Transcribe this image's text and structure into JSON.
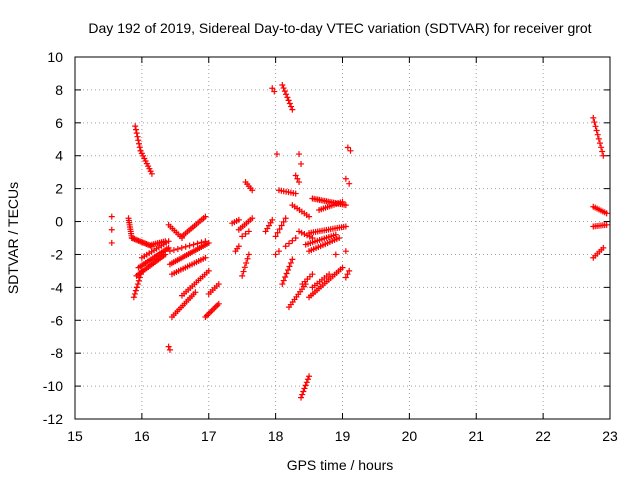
{
  "chart_data": {
    "type": "scatter",
    "title": "Day 192 of 2019, Sidereal Day-to-day VTEC variation (SDTVAR) for receiver grot",
    "xlabel": "GPS time / hours",
    "ylabel": "SDTVAR / TECUs",
    "xlim": [
      15,
      23
    ],
    "ylim": [
      -12,
      10
    ],
    "x_ticks": [
      "15",
      "16",
      "17",
      "18",
      "19",
      "20",
      "21",
      "22",
      "23"
    ],
    "y_ticks": [
      "10",
      "8",
      "6",
      "4",
      "2",
      "0",
      "-2",
      "-4",
      "-6",
      "-8",
      "-10",
      "-12"
    ],
    "grid": true,
    "marker": "+",
    "point_color": "#ff0000",
    "segments": [
      {
        "x0": 15.55,
        "y0": 0.3,
        "x1": 15.55,
        "y1": -1.3,
        "n": 3
      },
      {
        "x0": 15.8,
        "y0": 0.2,
        "x1": 15.85,
        "y1": -1.0,
        "n": 10
      },
      {
        "x0": 15.85,
        "y0": -1.0,
        "x1": 16.15,
        "y1": -1.5,
        "n": 16
      },
      {
        "x0": 16.15,
        "y0": -1.4,
        "x1": 16.35,
        "y1": -1.2,
        "n": 8
      },
      {
        "x0": 15.9,
        "y0": 5.8,
        "x1": 15.98,
        "y1": 4.3,
        "n": 8
      },
      {
        "x0": 15.98,
        "y0": 4.3,
        "x1": 16.15,
        "y1": 2.9,
        "n": 10
      },
      {
        "x0": 15.88,
        "y0": -4.6,
        "x1": 16.0,
        "y1": -3.0,
        "n": 9
      },
      {
        "x0": 15.92,
        "y0": -3.3,
        "x1": 16.35,
        "y1": -2.0,
        "n": 18
      },
      {
        "x0": 15.95,
        "y0": -2.8,
        "x1": 16.4,
        "y1": -1.6,
        "n": 18
      },
      {
        "x0": 16.0,
        "y0": -2.2,
        "x1": 16.4,
        "y1": -1.2,
        "n": 12
      },
      {
        "x0": 16.4,
        "y0": -0.2,
        "x1": 16.6,
        "y1": -1.0,
        "n": 8
      },
      {
        "x0": 16.6,
        "y0": -0.9,
        "x1": 16.95,
        "y1": 0.3,
        "n": 14
      },
      {
        "x0": 16.42,
        "y0": -1.8,
        "x1": 16.95,
        "y1": -1.2,
        "n": 10
      },
      {
        "x0": 16.42,
        "y0": -2.6,
        "x1": 17.0,
        "y1": -1.3,
        "n": 22
      },
      {
        "x0": 16.45,
        "y0": -3.2,
        "x1": 16.95,
        "y1": -2.2,
        "n": 16
      },
      {
        "x0": 16.45,
        "y0": -5.8,
        "x1": 16.8,
        "y1": -4.3,
        "n": 14
      },
      {
        "x0": 16.6,
        "y0": -4.5,
        "x1": 17.0,
        "y1": -3.0,
        "n": 14
      },
      {
        "x0": 16.95,
        "y0": -5.8,
        "x1": 17.15,
        "y1": -5.0,
        "n": 10
      },
      {
        "x0": 17.0,
        "y0": -4.4,
        "x1": 17.15,
        "y1": -3.8,
        "n": 6
      },
      {
        "x0": 16.4,
        "y0": -7.6,
        "x1": 16.42,
        "y1": -7.8,
        "n": 2
      },
      {
        "x0": 17.35,
        "y0": -0.1,
        "x1": 17.45,
        "y1": 0.1,
        "n": 4
      },
      {
        "x0": 17.4,
        "y0": -1.8,
        "x1": 17.45,
        "y1": -1.5,
        "n": 3
      },
      {
        "x0": 17.45,
        "y0": -0.5,
        "x1": 17.65,
        "y1": 0.2,
        "n": 8
      },
      {
        "x0": 17.55,
        "y0": 2.4,
        "x1": 17.65,
        "y1": 1.9,
        "n": 5
      },
      {
        "x0": 17.5,
        "y0": -3.3,
        "x1": 17.6,
        "y1": -2.0,
        "n": 6
      },
      {
        "x0": 17.5,
        "y0": -0.9,
        "x1": 17.6,
        "y1": -0.6,
        "n": 3
      },
      {
        "x0": 17.85,
        "y0": -0.6,
        "x1": 17.95,
        "y1": 0.1,
        "n": 5
      },
      {
        "x0": 17.95,
        "y0": 8.1,
        "x1": 17.98,
        "y1": 7.9,
        "n": 2
      },
      {
        "x0": 18.1,
        "y0": 8.3,
        "x1": 18.25,
        "y1": 6.8,
        "n": 9
      },
      {
        "x0": 18.02,
        "y0": 4.1,
        "x1": 18.05,
        "y1": 4.1,
        "n": 1
      },
      {
        "x0": 18.05,
        "y0": 1.9,
        "x1": 18.3,
        "y1": 1.7,
        "n": 8
      },
      {
        "x0": 18.3,
        "y0": 2.8,
        "x1": 18.35,
        "y1": 2.4,
        "n": 3
      },
      {
        "x0": 18.35,
        "y0": 4.1,
        "x1": 18.38,
        "y1": 3.5,
        "n": 2
      },
      {
        "x0": 18.25,
        "y0": 1.0,
        "x1": 18.5,
        "y1": 0.3,
        "n": 8
      },
      {
        "x0": 18.55,
        "y0": 1.4,
        "x1": 19.05,
        "y1": 1.0,
        "n": 20
      },
      {
        "x0": 18.65,
        "y0": 0.7,
        "x1": 19.0,
        "y1": 1.2,
        "n": 12
      },
      {
        "x0": 19.08,
        "y0": 4.5,
        "x1": 19.12,
        "y1": 4.3,
        "n": 2
      },
      {
        "x0": 19.05,
        "y0": 2.6,
        "x1": 19.1,
        "y1": 2.3,
        "n": 2
      },
      {
        "x0": 18.0,
        "y0": -0.9,
        "x1": 18.15,
        "y1": 0.2,
        "n": 6
      },
      {
        "x0": 18.15,
        "y0": -1.5,
        "x1": 18.3,
        "y1": -1.0,
        "n": 4
      },
      {
        "x0": 18.35,
        "y0": -0.6,
        "x1": 18.55,
        "y1": -1.0,
        "n": 6
      },
      {
        "x0": 18.5,
        "y0": -0.7,
        "x1": 19.05,
        "y1": -0.3,
        "n": 18
      },
      {
        "x0": 18.45,
        "y0": -1.4,
        "x1": 18.9,
        "y1": -0.8,
        "n": 14
      },
      {
        "x0": 18.5,
        "y0": -1.8,
        "x1": 18.95,
        "y1": -1.0,
        "n": 14
      },
      {
        "x0": 18.1,
        "y0": -3.8,
        "x1": 18.25,
        "y1": -2.3,
        "n": 8
      },
      {
        "x0": 18.0,
        "y0": -2.0,
        "x1": 18.05,
        "y1": -1.8,
        "n": 2
      },
      {
        "x0": 18.2,
        "y0": -5.2,
        "x1": 18.45,
        "y1": -3.8,
        "n": 10
      },
      {
        "x0": 18.4,
        "y0": -3.8,
        "x1": 18.55,
        "y1": -3.2,
        "n": 5
      },
      {
        "x0": 18.5,
        "y0": -4.6,
        "x1": 19.0,
        "y1": -2.8,
        "n": 18
      },
      {
        "x0": 18.55,
        "y0": -4.0,
        "x1": 18.8,
        "y1": -3.2,
        "n": 8
      },
      {
        "x0": 19.05,
        "y0": -3.4,
        "x1": 19.1,
        "y1": -3.0,
        "n": 3
      },
      {
        "x0": 18.9,
        "y0": -2.0,
        "x1": 19.05,
        "y1": -1.8,
        "n": 2
      },
      {
        "x0": 18.38,
        "y0": -10.7,
        "x1": 18.5,
        "y1": -9.4,
        "n": 8
      },
      {
        "x0": 22.75,
        "y0": 6.3,
        "x1": 22.9,
        "y1": 4.0,
        "n": 10
      },
      {
        "x0": 22.75,
        "y0": 0.9,
        "x1": 22.95,
        "y1": 0.5,
        "n": 8
      },
      {
        "x0": 22.75,
        "y0": -0.3,
        "x1": 22.95,
        "y1": -0.2,
        "n": 8
      },
      {
        "x0": 22.75,
        "y0": -2.2,
        "x1": 22.9,
        "y1": -1.6,
        "n": 6
      }
    ]
  }
}
